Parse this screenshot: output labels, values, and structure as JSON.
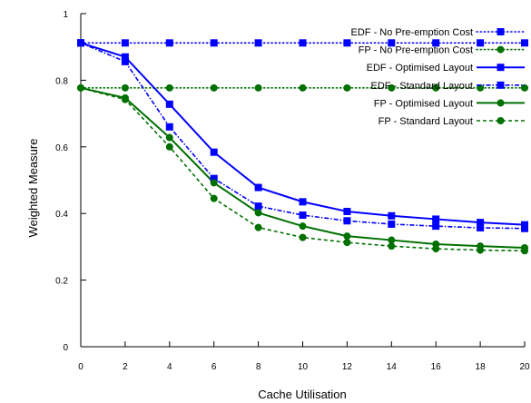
{
  "chart_data": {
    "type": "line",
    "title": "",
    "xlabel": "Cache Utilisation",
    "ylabel": "Weighted Measure",
    "xlim": [
      0,
      20
    ],
    "ylim": [
      0,
      1
    ],
    "x_ticks": [
      "0",
      "2",
      "4",
      "6",
      "8",
      "10",
      "12",
      "14",
      "16",
      "18",
      "20"
    ],
    "y_ticks": [
      "0",
      "0.2",
      "0.4",
      "0.6",
      "0.8",
      "1"
    ],
    "x": [
      0,
      2,
      4,
      6,
      8,
      10,
      12,
      14,
      16,
      18,
      20
    ],
    "grid": false,
    "legend_position": "top-right",
    "series": [
      {
        "name": "EDF - No Pre-emption Cost",
        "color": "#0000ff",
        "marker": "square",
        "line_style": "dotted",
        "values": [
          0.912,
          0.912,
          0.912,
          0.912,
          0.912,
          0.912,
          0.912,
          0.912,
          0.912,
          0.912,
          0.912
        ]
      },
      {
        "name": "FP - No Pre-emption Cost",
        "color": "#007000",
        "marker": "circle",
        "line_style": "dotted",
        "values": [
          0.777,
          0.777,
          0.777,
          0.777,
          0.777,
          0.777,
          0.777,
          0.777,
          0.777,
          0.777,
          0.777
        ]
      },
      {
        "name": "EDF - Optimised Layout",
        "color": "#0000ff",
        "marker": "square",
        "line_style": "solid",
        "values": [
          0.912,
          0.87,
          0.728,
          0.584,
          0.478,
          0.435,
          0.406,
          0.393,
          0.383,
          0.373,
          0.366
        ]
      },
      {
        "name": "EDF - Standard Layout",
        "color": "#0000ff",
        "marker": "square",
        "line_style": "dashdot",
        "values": [
          0.912,
          0.856,
          0.66,
          0.505,
          0.422,
          0.395,
          0.378,
          0.368,
          0.362,
          0.357,
          0.355
        ]
      },
      {
        "name": "FP - Optimised Layout",
        "color": "#007000",
        "marker": "circle",
        "line_style": "solid",
        "values": [
          0.777,
          0.747,
          0.628,
          0.492,
          0.402,
          0.362,
          0.332,
          0.32,
          0.308,
          0.302,
          0.297
        ]
      },
      {
        "name": "FP - Standard Layout",
        "color": "#007000",
        "marker": "circle",
        "line_style": "dashed",
        "values": [
          0.777,
          0.742,
          0.6,
          0.445,
          0.358,
          0.328,
          0.313,
          0.302,
          0.294,
          0.29,
          0.288
        ]
      }
    ]
  }
}
